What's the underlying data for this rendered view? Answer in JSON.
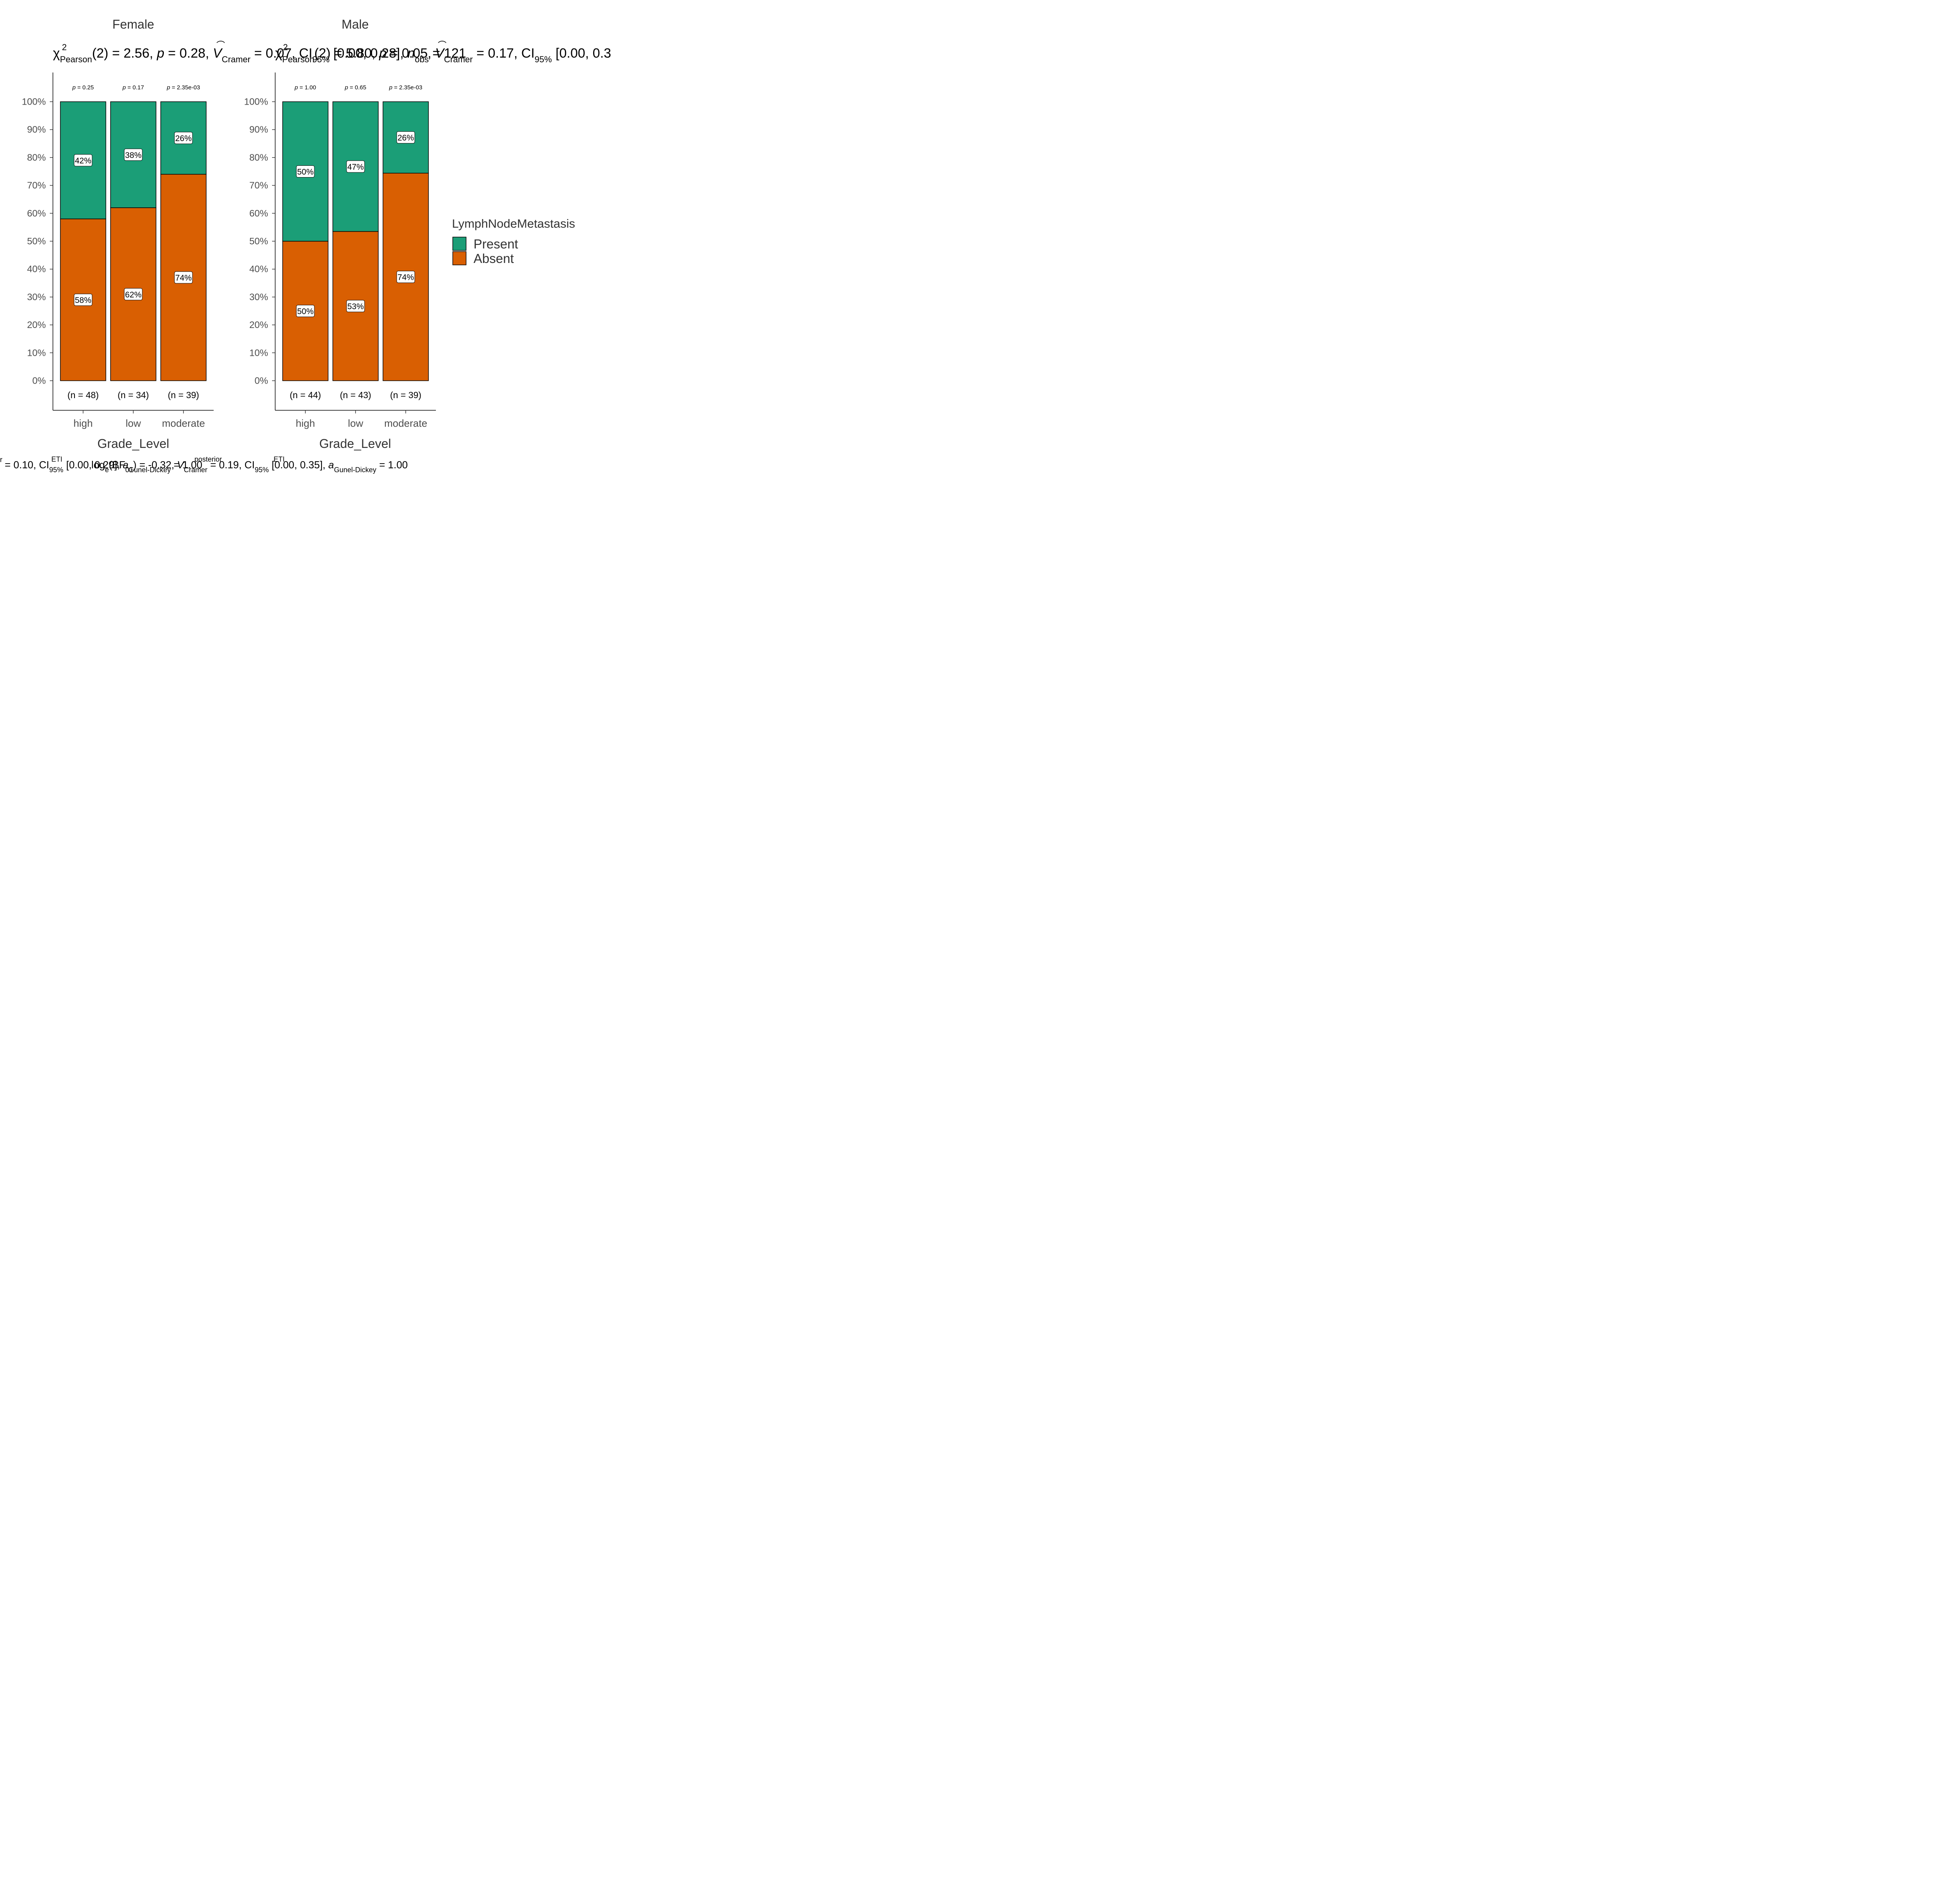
{
  "chart_data": [
    {
      "type": "bar",
      "stacked": true,
      "title": "Female",
      "subtitle": "χ²Pearson(2) = 2.56, p = 0.28, V̂Cramer = 0.07, CI95% [0.00, 0.28], nobs = 121",
      "xlabel": "Grade_Level",
      "categories": [
        "high",
        "low",
        "moderate"
      ],
      "series": [
        {
          "name": "Present",
          "values": [
            42,
            38,
            26
          ],
          "labels": [
            "42%",
            "38%",
            "26%"
          ]
        },
        {
          "name": "Absent",
          "values": [
            58,
            62,
            74
          ],
          "labels": [
            "58%",
            "62%",
            "74%"
          ]
        }
      ],
      "bar_tops": [
        100,
        100,
        100
      ],
      "pvalues": [
        "p = 0.25",
        "p = 0.17",
        "p = 2.35e-03"
      ],
      "counts": [
        "(n = 48)",
        "(n = 34)",
        "(n = 39)"
      ],
      "yticks": [
        "0%",
        "10%",
        "20%",
        "30%",
        "40%",
        "50%",
        "60%",
        "70%",
        "80%",
        "90%",
        "100%"
      ],
      "ylim": [
        0,
        100
      ]
    },
    {
      "type": "bar",
      "stacked": true,
      "title": "Male",
      "subtitle": "χ²Pearson(2) = 5.80, p = 0.05, V̂Cramer = 0.17, CI95% [0.00, 0.3",
      "xlabel": "Grade_Level",
      "categories": [
        "high",
        "low",
        "moderate"
      ],
      "series": [
        {
          "name": "Present",
          "values": [
            50,
            46.5,
            25.6
          ],
          "labels": [
            "50%",
            "47%",
            "26%"
          ]
        },
        {
          "name": "Absent",
          "values": [
            50,
            53.5,
            74.4
          ],
          "labels": [
            "50%",
            "53%",
            "74%"
          ]
        }
      ],
      "pvalues": [
        "p = 1.00",
        "p = 0.65",
        "p = 2.35e-03"
      ],
      "counts": [
        "(n = 44)",
        "(n = 43)",
        "(n = 39)"
      ],
      "yticks": [
        "0%",
        "10%",
        "20%",
        "30%",
        "40%",
        "50%",
        "60%",
        "70%",
        "80%",
        "90%",
        "100%"
      ],
      "ylim": [
        0,
        100
      ]
    }
  ],
  "legend": {
    "title": "LymphNodeMetastasis",
    "items": [
      {
        "label": "Present",
        "color": "#1B9E77"
      },
      {
        "label": "Absent",
        "color": "#D95F02"
      }
    ],
    "placement": "right"
  },
  "captions": {
    "female": "r = 0.10, CIETI95% [0.00, 0.29], a Gunel-Dickey = 1.00",
    "male": "log e(BF01) = -0.32, V̂posterior Cramer = 0.19, CIETI95% [0.00, 0.35], a Gunel-Dickey = 1.00"
  },
  "colors": {
    "present": "#1B9E77",
    "absent": "#D95F02"
  }
}
